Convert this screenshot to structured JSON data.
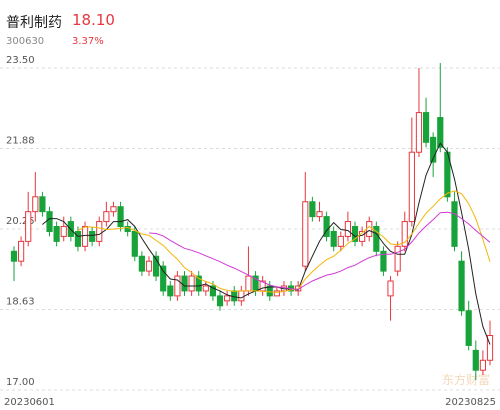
{
  "header": {
    "name": "普利制药",
    "price": "18.10",
    "code": "300630",
    "change": "3.37%"
  },
  "chart_data": {
    "type": "candlestick",
    "categories": [
      "20230601",
      null,
      null,
      null,
      null,
      null,
      null,
      null,
      null,
      null,
      null,
      null,
      null,
      null,
      null,
      null,
      null,
      null,
      null,
      null,
      null,
      null,
      null,
      null,
      null,
      null,
      null,
      null,
      null,
      null,
      null,
      null,
      null,
      null,
      null,
      null,
      null,
      null,
      null,
      null,
      null,
      null,
      null,
      null,
      null,
      null,
      null,
      null,
      null,
      null,
      null,
      null,
      null,
      null,
      null,
      null,
      null,
      null,
      null,
      null,
      null,
      null,
      null,
      null,
      null,
      null,
      null,
      "20230825"
    ],
    "open": [
      19.8,
      19.6,
      20.0,
      20.6,
      20.9,
      20.6,
      20.3,
      20.1,
      20.4,
      20.2,
      19.9,
      20.2,
      20.0,
      20.4,
      20.6,
      20.7,
      20.3,
      20.2,
      19.7,
      19.4,
      19.7,
      19.5,
      19.1,
      18.9,
      19.3,
      19.0,
      19.3,
      19.0,
      19.1,
      18.9,
      18.8,
      19.0,
      18.8,
      19.0,
      19.3,
      19.0,
      19.1,
      18.9,
      19.0,
      19.1,
      19.0,
      19.5,
      20.8,
      20.5,
      20.5,
      20.2,
      19.9,
      20.1,
      20.3,
      20.0,
      20.1,
      20.3,
      19.8,
      18.9,
      19.4,
      19.9,
      20.4,
      21.8,
      22.6,
      22.1,
      22.5,
      21.8,
      20.8,
      19.6,
      18.6,
      17.8,
      17.4,
      17.6
    ],
    "high": [
      19.9,
      20.1,
      21.0,
      21.4,
      21.0,
      20.7,
      20.4,
      20.5,
      20.5,
      20.3,
      20.4,
      20.3,
      20.5,
      20.8,
      20.8,
      20.8,
      20.4,
      20.3,
      19.8,
      19.7,
      19.8,
      19.6,
      19.2,
      19.4,
      19.4,
      19.4,
      19.4,
      19.2,
      19.2,
      19.0,
      19.0,
      19.1,
      19.1,
      19.9,
      19.4,
      19.3,
      19.2,
      19.1,
      19.2,
      19.2,
      19.2,
      21.4,
      20.9,
      20.8,
      20.6,
      20.3,
      20.2,
      20.6,
      20.4,
      20.3,
      20.5,
      20.4,
      19.9,
      19.3,
      20.0,
      20.6,
      22.5,
      23.5,
      22.9,
      22.2,
      23.6,
      21.9,
      21.0,
      19.8,
      18.8,
      18.0,
      17.8,
      18.4
    ],
    "low": [
      19.2,
      19.5,
      19.9,
      20.4,
      20.5,
      20.1,
      19.9,
      20.0,
      20.0,
      19.8,
      19.8,
      19.9,
      19.9,
      20.3,
      20.5,
      20.2,
      20.1,
      19.6,
      19.3,
      19.3,
      19.2,
      18.9,
      18.8,
      18.8,
      18.9,
      18.9,
      18.9,
      18.9,
      18.8,
      18.6,
      18.7,
      18.7,
      18.7,
      18.9,
      18.9,
      18.9,
      18.8,
      18.9,
      18.9,
      18.9,
      18.9,
      19.4,
      20.4,
      20.4,
      20.0,
      19.8,
      19.8,
      20.0,
      19.9,
      19.9,
      20.0,
      19.7,
      19.3,
      18.4,
      19.3,
      19.8,
      20.3,
      21.7,
      21.9,
      21.3,
      21.8,
      20.8,
      19.8,
      18.5,
      17.8,
      17.2,
      17.3,
      17.5
    ],
    "close": [
      19.6,
      20.0,
      20.6,
      20.9,
      20.6,
      20.2,
      20.0,
      20.3,
      20.1,
      19.9,
      20.3,
      20.0,
      20.4,
      20.6,
      20.7,
      20.3,
      20.2,
      19.7,
      19.4,
      19.6,
      19.3,
      19.0,
      18.9,
      19.3,
      19.0,
      19.3,
      19.0,
      19.1,
      18.9,
      18.7,
      18.9,
      18.8,
      19.0,
      19.3,
      19.0,
      19.2,
      18.9,
      19.0,
      19.1,
      19.0,
      19.1,
      20.8,
      20.5,
      20.6,
      20.1,
      19.9,
      20.1,
      20.4,
      20.0,
      20.2,
      20.4,
      19.8,
      19.4,
      19.2,
      19.9,
      20.4,
      21.8,
      22.6,
      22.0,
      21.6,
      21.9,
      20.9,
      19.9,
      18.6,
      17.9,
      17.4,
      17.6,
      18.1
    ],
    "up_color": "#e8373e",
    "down_color": "#18a33a",
    "lines": [
      {
        "color": "#222222",
        "values": [
          null,
          null,
          null,
          null,
          20.34,
          20.46,
          20.46,
          20.4,
          20.24,
          20.1,
          20.12,
          20.12,
          20.14,
          20.24,
          20.4,
          20.4,
          20.44,
          20.3,
          20.06,
          19.84,
          19.64,
          19.4,
          19.24,
          19.22,
          19.1,
          19.1,
          19.1,
          19.14,
          19.06,
          19.0,
          18.92,
          18.88,
          18.86,
          18.94,
          19.0,
          19.06,
          19.08,
          19.08,
          19.04,
          19.04,
          19.02,
          19.4,
          19.7,
          20.0,
          20.22,
          20.38,
          20.24,
          20.22,
          20.1,
          20.12,
          20.22,
          20.16,
          19.96,
          19.8,
          19.74,
          19.74,
          20.14,
          20.78,
          21.34,
          21.68,
          21.98,
          21.8,
          21.26,
          20.58,
          19.84,
          18.94,
          18.28,
          17.92
        ]
      },
      {
        "color": "#f2b707",
        "values": [
          null,
          null,
          null,
          null,
          null,
          null,
          null,
          null,
          null,
          20.22,
          20.29,
          20.29,
          20.27,
          20.24,
          20.25,
          20.26,
          20.28,
          20.22,
          20.15,
          20.12,
          20.02,
          19.92,
          19.77,
          19.64,
          19.47,
          19.37,
          19.25,
          19.19,
          19.14,
          19.05,
          19.01,
          18.99,
          19.0,
          19.0,
          19.0,
          18.99,
          18.98,
          18.97,
          18.99,
          19.02,
          19.04,
          19.24,
          19.39,
          19.52,
          19.63,
          19.7,
          19.82,
          19.96,
          20.05,
          20.17,
          20.3,
          20.2,
          20.09,
          19.95,
          19.93,
          19.98,
          20.15,
          20.37,
          20.57,
          20.71,
          20.86,
          20.97,
          21.02,
          20.96,
          20.76,
          20.46,
          20.04,
          19.59
        ]
      },
      {
        "color": "#d23ad6",
        "values": [
          null,
          null,
          null,
          null,
          null,
          null,
          null,
          null,
          null,
          null,
          null,
          null,
          null,
          null,
          null,
          null,
          null,
          null,
          null,
          20.17,
          20.16,
          20.11,
          20.02,
          19.94,
          19.86,
          19.82,
          19.77,
          19.71,
          19.65,
          19.59,
          19.52,
          19.46,
          19.39,
          19.32,
          19.24,
          19.18,
          19.12,
          19.08,
          19.07,
          19.04,
          19.03,
          19.12,
          19.2,
          19.26,
          19.32,
          19.35,
          19.4,
          19.47,
          19.52,
          19.6,
          19.67,
          19.72,
          19.74,
          19.74,
          19.78,
          19.84,
          19.99,
          20.17,
          20.31,
          20.44,
          20.58,
          20.59,
          20.56,
          20.46,
          20.35,
          20.22,
          20.1,
          19.98
        ]
      }
    ],
    "ylim": [
      17,
      23.5
    ],
    "yticks": [
      {
        "value": 23.5,
        "label": "23.50"
      },
      {
        "value": 21.875,
        "label": "21.88"
      },
      {
        "value": 20.25,
        "label": "20.25"
      },
      {
        "value": 18.625,
        "label": "18.63"
      },
      {
        "value": 17,
        "label": "17.00"
      }
    ],
    "grid": true,
    "watermark": "东方财富"
  }
}
